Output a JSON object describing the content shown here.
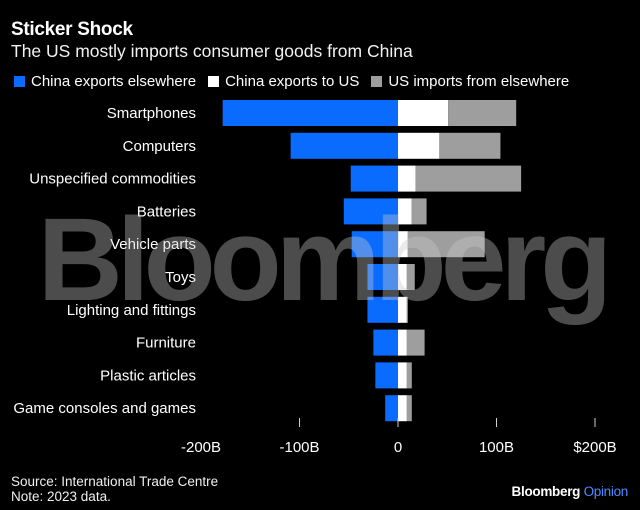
{
  "header": {
    "title": "Sticker Shock",
    "subtitle": "The US mostly imports consumer goods from China"
  },
  "legend": [
    {
      "label": "China exports elsewhere",
      "color": "#0a6cff"
    },
    {
      "label": "China exports to US",
      "color": "#ffffff"
    },
    {
      "label": "US imports from elsewhere",
      "color": "#9e9e9e"
    }
  ],
  "chart_data": {
    "type": "bar",
    "orientation": "horizontal",
    "stacked": true,
    "title": "Sticker Shock",
    "subtitle": "The US mostly imports consumer goods from China",
    "xlabel": "",
    "ylabel": "",
    "unit": "billion USD",
    "xlim": [
      -200,
      200
    ],
    "x_ticks": [
      -200,
      -100,
      0,
      100,
      200
    ],
    "x_tick_labels": [
      "-200B",
      "-100B",
      "0",
      "100B",
      "$200B"
    ],
    "grid": false,
    "legend_position": "top-left",
    "categories": [
      "Smartphones",
      "Computers",
      "Unspecified commodities",
      "Batteries",
      "Vehicle parts",
      "Toys",
      "Lighting and fittings",
      "Furniture",
      "Plastic articles",
      "Game consoles and games"
    ],
    "series": [
      {
        "name": "China exports elsewhere",
        "color": "#0a6cff",
        "values": [
          -178,
          -109,
          -48,
          -55,
          -47,
          -31,
          -31,
          -25,
          -23,
          -13
        ]
      },
      {
        "name": "China exports to US",
        "color": "#ffffff",
        "values": [
          51,
          42,
          18,
          14,
          10,
          9,
          9,
          9,
          9,
          9
        ]
      },
      {
        "name": "US imports from elsewhere",
        "color": "#9e9e9e",
        "values": [
          69,
          62,
          107,
          15,
          78,
          8,
          1,
          18,
          5,
          5
        ]
      }
    ]
  },
  "watermark": "Bloomberg",
  "footer": {
    "source": "Source: International Trade Centre",
    "note": "Note: 2023 data."
  },
  "brand": {
    "name": "Bloomberg",
    "suffix": "Opinion"
  }
}
